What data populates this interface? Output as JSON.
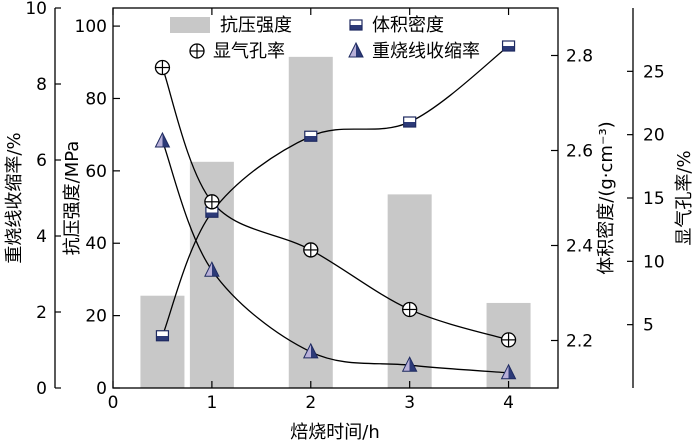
{
  "chart_data": {
    "type": "bar",
    "xlabel": "焙烧时间/h",
    "xlim": [
      0,
      4.5
    ],
    "xticks": [
      "0",
      "1",
      "2",
      "3",
      "4"
    ],
    "axes": {
      "shrinkage": {
        "label": "重烧线收缩率/%",
        "lim": [
          0,
          10
        ],
        "ticks": [
          "0",
          "2",
          "4",
          "6",
          "8",
          "10"
        ]
      },
      "strength": {
        "label": "抗压强度/MPa",
        "lim": [
          0,
          105
        ],
        "ticks": [
          "0",
          "20",
          "40",
          "60",
          "80",
          "100"
        ]
      },
      "density": {
        "label": "体积密度/(g·cm⁻³)",
        "lim": [
          2.1,
          2.9
        ],
        "ticks": [
          "2.2",
          "2.4",
          "2.6",
          "2.8"
        ]
      },
      "porosity": {
        "label": "显气孔率/%",
        "lim": [
          0,
          30
        ],
        "ticks": [
          "5",
          "10",
          "15",
          "20",
          "25"
        ]
      }
    },
    "series": [
      {
        "name": "抗压强度",
        "kind": "bar",
        "axis": "strength",
        "color": "#c8c8c8",
        "x": [
          0.5,
          1,
          2,
          3,
          4
        ],
        "values": [
          25.5,
          62.5,
          91.5,
          53.5,
          23.5
        ]
      },
      {
        "name": "体积密度",
        "kind": "line",
        "marker": "square",
        "axis": "density",
        "x": [
          0.5,
          1,
          2,
          3,
          4
        ],
        "values": [
          2.21,
          2.47,
          2.63,
          2.66,
          2.82
        ]
      },
      {
        "name": "显气孔率",
        "kind": "line",
        "marker": "circle-plus",
        "axis": "porosity",
        "x": [
          0.5,
          1,
          2,
          3,
          4
        ],
        "values": [
          25.3,
          14.7,
          10.9,
          6.2,
          3.8
        ]
      },
      {
        "name": "重烧线收缩率",
        "kind": "line",
        "marker": "triangle",
        "axis": "shrinkage",
        "x": [
          0.5,
          1,
          2,
          3,
          4
        ],
        "values": [
          6.5,
          3.1,
          0.95,
          0.6,
          0.4
        ]
      }
    ],
    "legend_position": "top",
    "grid": false
  }
}
